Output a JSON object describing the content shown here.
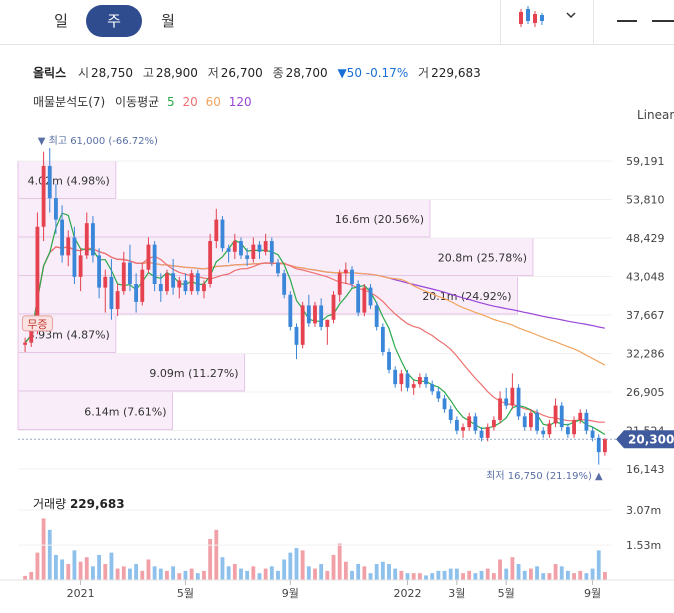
{
  "tabs": {
    "day": "일",
    "week": "주",
    "month": "월",
    "active": "주"
  },
  "toolbar": {
    "chart_type_icon": "candlestick-icon",
    "dropdown_icon": "chevron-down-icon"
  },
  "quote": {
    "name": "올릭스",
    "open_label": "시",
    "open": "28,750",
    "high_label": "고",
    "high": "28,900",
    "low_label": "저",
    "low": "26,700",
    "close_label": "종",
    "close": "28,700",
    "change": "▼50 -0.17%",
    "volume_label": "거",
    "volume": "229,683"
  },
  "indicators": {
    "analysis": "매물분석도(7)",
    "ma_label": "이동평균",
    "ma5": "5",
    "ma20": "20",
    "ma60": "60",
    "ma120": "120"
  },
  "scale_label": "Linear",
  "volume_panel": {
    "title": "거래량",
    "value": "229,683"
  },
  "colors": {
    "up": "#e5414f",
    "down": "#3a86d8",
    "ma5": "#2aa84a",
    "ma20": "#ef6f6f",
    "ma60": "#f2a35d",
    "ma120": "#9a47d8",
    "accent": "#2f4c8f",
    "profile": "#d79ad8"
  },
  "chart_data": {
    "type": "candlestick",
    "y_ticks": [
      "59,191",
      "53,810",
      "48,429",
      "43,048",
      "37,667",
      "32,286",
      "26,905",
      "21,524",
      "16,143"
    ],
    "ylim": [
      16143,
      59191
    ],
    "current_price": "20,300",
    "high_annotation": "최고 61,000 (-66.72%)",
    "low_annotation": "최저 16,750 (21.19%)",
    "event_label": "무증",
    "volume_ticks": [
      "3.07m",
      "1.53m"
    ],
    "x_ticks": [
      "2021",
      "5월",
      "9월",
      "2022",
      "3월",
      "5월",
      "9월"
    ],
    "volume_profile": [
      {
        "from": 53810,
        "to": 59191,
        "label": "4.02m (4.98%)",
        "size": 0.19
      },
      {
        "from": 48429,
        "to": 53810,
        "label": "16.6m (20.56%)",
        "size": 0.8
      },
      {
        "from": 43048,
        "to": 48429,
        "label": "20.8m (25.78%)",
        "size": 1.0
      },
      {
        "from": 37667,
        "to": 43048,
        "label": "20.1m (24.92%)",
        "size": 0.97
      },
      {
        "from": 32286,
        "to": 37667,
        "label": "3.93m (4.87%)",
        "size": 0.19
      },
      {
        "from": 26905,
        "to": 32286,
        "label": "9.09m (11.27%)",
        "size": 0.44
      },
      {
        "from": 21524,
        "to": 26905,
        "label": "6.14m (7.61%)",
        "size": 0.3
      }
    ],
    "candles": [
      [
        33500,
        34500,
        32500,
        33800
      ],
      [
        33800,
        36500,
        33200,
        35800
      ],
      [
        35800,
        52000,
        35000,
        50000
      ],
      [
        50000,
        60500,
        48000,
        58500
      ],
      [
        58500,
        61000,
        52000,
        54000
      ],
      [
        54000,
        56000,
        49000,
        51000
      ],
      [
        51000,
        53000,
        45000,
        46000
      ],
      [
        46000,
        49500,
        44500,
        48500
      ],
      [
        48500,
        50000,
        42000,
        43000
      ],
      [
        43000,
        47000,
        41000,
        46000
      ],
      [
        46000,
        52000,
        45500,
        50500
      ],
      [
        50500,
        51500,
        45000,
        46000
      ],
      [
        46000,
        47000,
        40000,
        41500
      ],
      [
        41500,
        44000,
        38000,
        43000
      ],
      [
        43000,
        45500,
        37000,
        38500
      ],
      [
        38500,
        42000,
        37500,
        41000
      ],
      [
        41000,
        46500,
        40500,
        45000
      ],
      [
        45000,
        47500,
        41000,
        42000
      ],
      [
        42000,
        43500,
        38000,
        39500
      ],
      [
        39500,
        45000,
        39000,
        44000
      ],
      [
        44000,
        48500,
        43500,
        47500
      ],
      [
        47500,
        48000,
        41000,
        42000
      ],
      [
        42000,
        43500,
        39500,
        41000
      ],
      [
        41000,
        44000,
        40500,
        43500
      ],
      [
        43500,
        45500,
        40500,
        41500
      ],
      [
        41500,
        43000,
        40000,
        42500
      ],
      [
        42500,
        43500,
        40500,
        41000
      ],
      [
        41000,
        44000,
        40500,
        43500
      ],
      [
        43500,
        44000,
        40500,
        41000
      ],
      [
        41000,
        42500,
        40000,
        42000
      ],
      [
        42000,
        49000,
        41500,
        48000
      ],
      [
        48000,
        52500,
        47000,
        51000
      ],
      [
        51000,
        51500,
        46500,
        47000
      ],
      [
        47000,
        47500,
        45000,
        46500
      ],
      [
        46500,
        49000,
        45500,
        48000
      ],
      [
        48000,
        48500,
        45500,
        46000
      ],
      [
        46000,
        47000,
        44500,
        45500
      ],
      [
        45500,
        48500,
        45000,
        47500
      ],
      [
        47500,
        48000,
        45500,
        46500
      ],
      [
        46500,
        49000,
        46000,
        48000
      ],
      [
        48000,
        48500,
        44500,
        45000
      ],
      [
        45000,
        45500,
        43000,
        43500
      ],
      [
        43500,
        44000,
        40000,
        40500
      ],
      [
        40500,
        41000,
        35500,
        36000
      ],
      [
        36000,
        36500,
        31500,
        33500
      ],
      [
        33500,
        39500,
        33000,
        39000
      ],
      [
        39000,
        40500,
        36000,
        36500
      ],
      [
        36500,
        39500,
        36000,
        39000
      ],
      [
        39000,
        40000,
        35500,
        36000
      ],
      [
        36000,
        37000,
        33500,
        37000
      ],
      [
        37000,
        41000,
        36500,
        40500
      ],
      [
        40500,
        44000,
        39500,
        43500
      ],
      [
        43500,
        45000,
        42000,
        44000
      ],
      [
        44000,
        44500,
        41500,
        42000
      ],
      [
        42000,
        42500,
        37500,
        38000
      ],
      [
        38000,
        42000,
        37500,
        41500
      ],
      [
        41500,
        42000,
        38500,
        39000
      ],
      [
        39000,
        39500,
        35500,
        36000
      ],
      [
        36000,
        36500,
        32000,
        32500
      ],
      [
        32500,
        33000,
        29500,
        30000
      ],
      [
        30000,
        30500,
        27500,
        28000
      ],
      [
        28000,
        30000,
        27000,
        29500
      ],
      [
        29500,
        30000,
        27000,
        27500
      ],
      [
        27500,
        28500,
        26500,
        28000
      ],
      [
        28000,
        29500,
        27500,
        29000
      ],
      [
        29000,
        29500,
        27500,
        28000
      ],
      [
        28000,
        28500,
        26500,
        27000
      ],
      [
        27000,
        27500,
        25500,
        26000
      ],
      [
        26000,
        26500,
        24000,
        24500
      ],
      [
        24500,
        25000,
        22500,
        23000
      ],
      [
        23000,
        23500,
        21000,
        21500
      ],
      [
        21500,
        22500,
        20500,
        22000
      ],
      [
        22000,
        24000,
        21500,
        23500
      ],
      [
        23500,
        24000,
        21000,
        21500
      ],
      [
        21500,
        22000,
        20000,
        20500
      ],
      [
        20500,
        22500,
        20000,
        22000
      ],
      [
        22000,
        23500,
        21500,
        23000
      ],
      [
        23000,
        27000,
        22500,
        26000
      ],
      [
        26000,
        27500,
        24500,
        25000
      ],
      [
        25000,
        29500,
        24500,
        27500
      ],
      [
        27500,
        28000,
        23000,
        23500
      ],
      [
        23500,
        24000,
        21500,
        22000
      ],
      [
        22000,
        24500,
        21500,
        24000
      ],
      [
        24000,
        24500,
        21000,
        21500
      ],
      [
        21500,
        22000,
        20500,
        21000
      ],
      [
        21000,
        23000,
        20500,
        22500
      ],
      [
        22500,
        26000,
        22000,
        25000
      ],
      [
        25000,
        25500,
        21500,
        22000
      ],
      [
        22000,
        22500,
        20500,
        21000
      ],
      [
        21000,
        23500,
        20500,
        23000
      ],
      [
        23000,
        24500,
        22500,
        24000
      ],
      [
        24000,
        24500,
        21000,
        21500
      ],
      [
        21500,
        22000,
        20000,
        20500
      ],
      [
        20500,
        21000,
        16750,
        18500
      ],
      [
        18500,
        20500,
        18000,
        20300
      ]
    ],
    "volume": [
      0.18,
      0.35,
      1.2,
      2.7,
      2.2,
      1.1,
      0.9,
      0.7,
      1.3,
      0.8,
      1.0,
      0.6,
      1.1,
      0.7,
      1.2,
      0.5,
      0.6,
      0.5,
      0.7,
      0.4,
      0.9,
      0.6,
      0.5,
      0.4,
      0.6,
      0.3,
      0.4,
      0.5,
      0.3,
      0.4,
      1.8,
      2.2,
      1.0,
      0.6,
      0.7,
      0.5,
      0.4,
      0.6,
      0.3,
      0.5,
      0.6,
      0.4,
      0.9,
      1.2,
      1.4,
      1.3,
      0.6,
      0.5,
      0.7,
      0.4,
      1.1,
      1.6,
      0.8,
      0.4,
      0.7,
      0.6,
      0.3,
      0.7,
      0.8,
      0.7,
      0.5,
      0.4,
      0.3,
      0.3,
      0.3,
      0.2,
      0.3,
      0.4,
      0.4,
      0.5,
      0.5,
      0.3,
      0.4,
      0.3,
      0.4,
      0.5,
      0.3,
      0.9,
      0.5,
      1.0,
      0.7,
      0.4,
      0.5,
      0.6,
      0.3,
      0.3,
      0.7,
      0.6,
      0.4,
      0.3,
      0.4,
      0.3,
      0.5,
      1.3,
      0.35
    ]
  }
}
